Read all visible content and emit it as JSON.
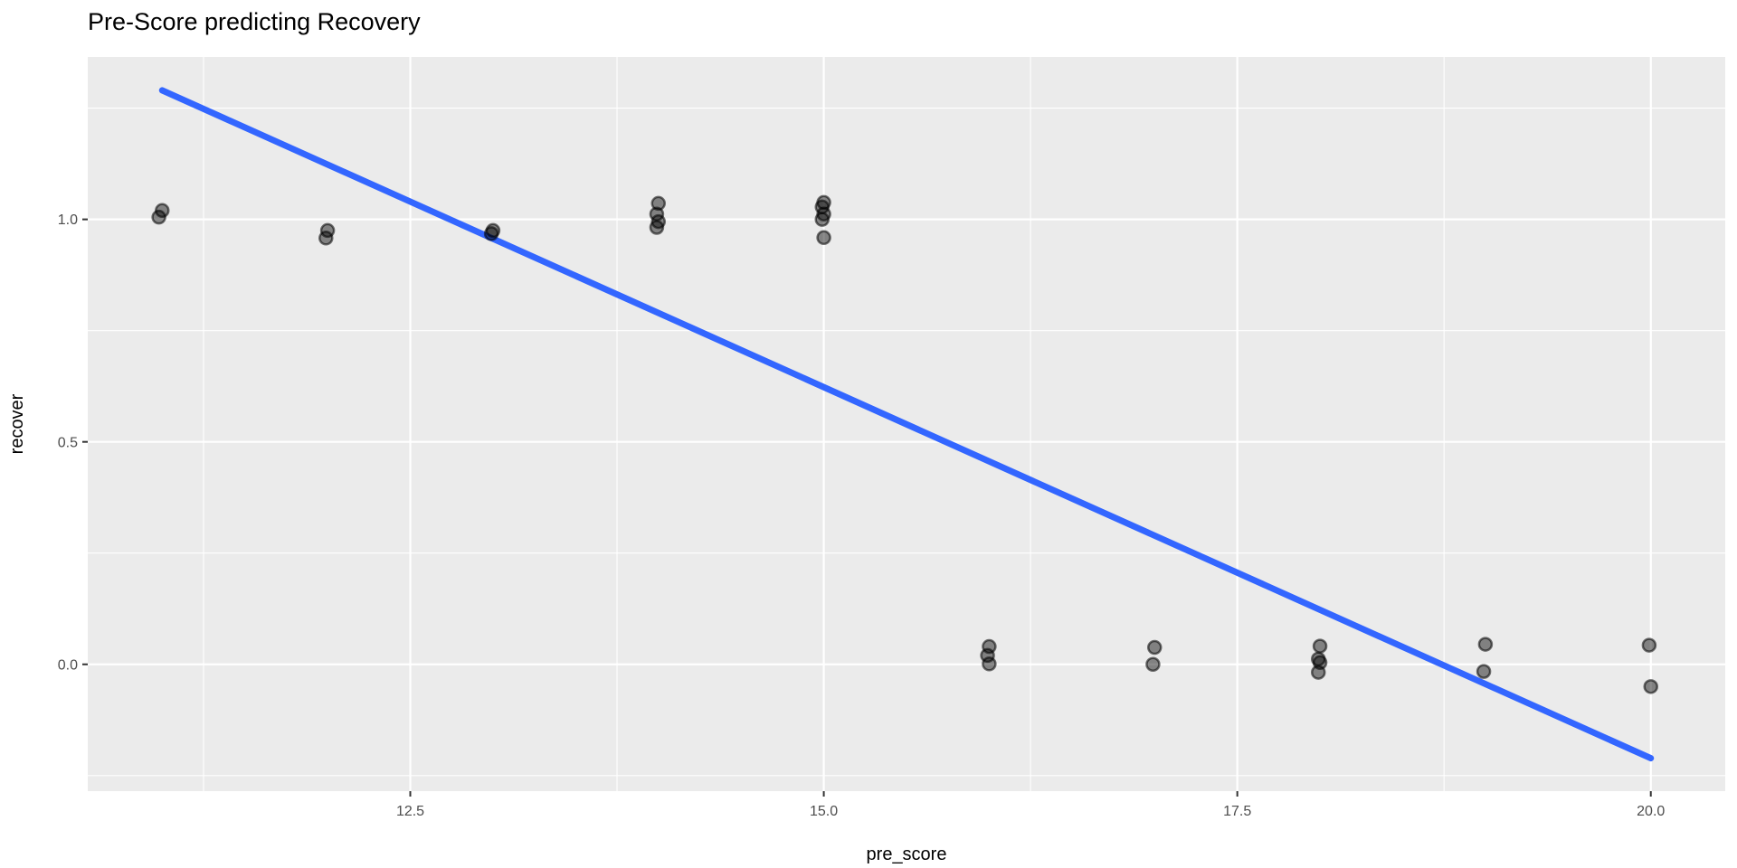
{
  "chart_data": {
    "type": "scatter",
    "title": "Pre-Score predicting Recovery",
    "xlabel": "pre_score",
    "ylabel": "recover",
    "xlim": [
      10.55,
      20.45
    ],
    "ylim": [
      -0.285,
      1.365
    ],
    "grid": "on",
    "legend": "none",
    "x_ticks": {
      "values": [
        12.5,
        15.0,
        17.5,
        20.0
      ],
      "labels": [
        "12.5",
        "15.0",
        "17.5",
        "20.0"
      ],
      "minor": [
        11.25,
        13.75,
        16.25,
        18.75
      ]
    },
    "y_ticks": {
      "values": [
        0.0,
        0.5,
        1.0
      ],
      "labels": [
        "0.0",
        "0.5",
        "1.0"
      ],
      "minor": [
        -0.25,
        0.25,
        0.75,
        1.25
      ]
    },
    "points": [
      [
        11.0,
        1.02
      ],
      [
        10.98,
        1.005
      ],
      [
        12.0,
        0.975
      ],
      [
        11.99,
        0.958
      ],
      [
        13.0,
        0.975
      ],
      [
        12.99,
        0.968
      ],
      [
        14.0,
        1.036
      ],
      [
        13.99,
        1.012
      ],
      [
        14.0,
        0.995
      ],
      [
        13.99,
        0.982
      ],
      [
        15.0,
        1.038
      ],
      [
        14.99,
        1.028
      ],
      [
        15.0,
        1.012
      ],
      [
        14.99,
        1.0
      ],
      [
        15.0,
        0.959
      ],
      [
        16.0,
        0.04
      ],
      [
        15.99,
        0.02
      ],
      [
        16.0,
        0.001
      ],
      [
        17.0,
        0.038
      ],
      [
        16.99,
        0.0
      ],
      [
        18.0,
        0.041
      ],
      [
        17.99,
        0.012
      ],
      [
        18.0,
        0.004
      ],
      [
        17.99,
        -0.018
      ],
      [
        19.0,
        0.045
      ],
      [
        18.99,
        -0.016
      ],
      [
        19.99,
        0.043
      ],
      [
        20.0,
        -0.05
      ]
    ],
    "regression_line": {
      "x1": 11.0,
      "y1": 1.29,
      "x2": 20.0,
      "y2": -0.211
    },
    "style": {
      "panel_bg": "#EBEBEB",
      "grid_color": "#FFFFFF",
      "line_color": "#3366FF",
      "point_color": "#000000",
      "point_opacity": 0.45,
      "tick_mark_color": "#333333",
      "tick_label_color": "#4D4D4D",
      "axis_title_color": "#000000",
      "title_color": "#000000"
    }
  }
}
